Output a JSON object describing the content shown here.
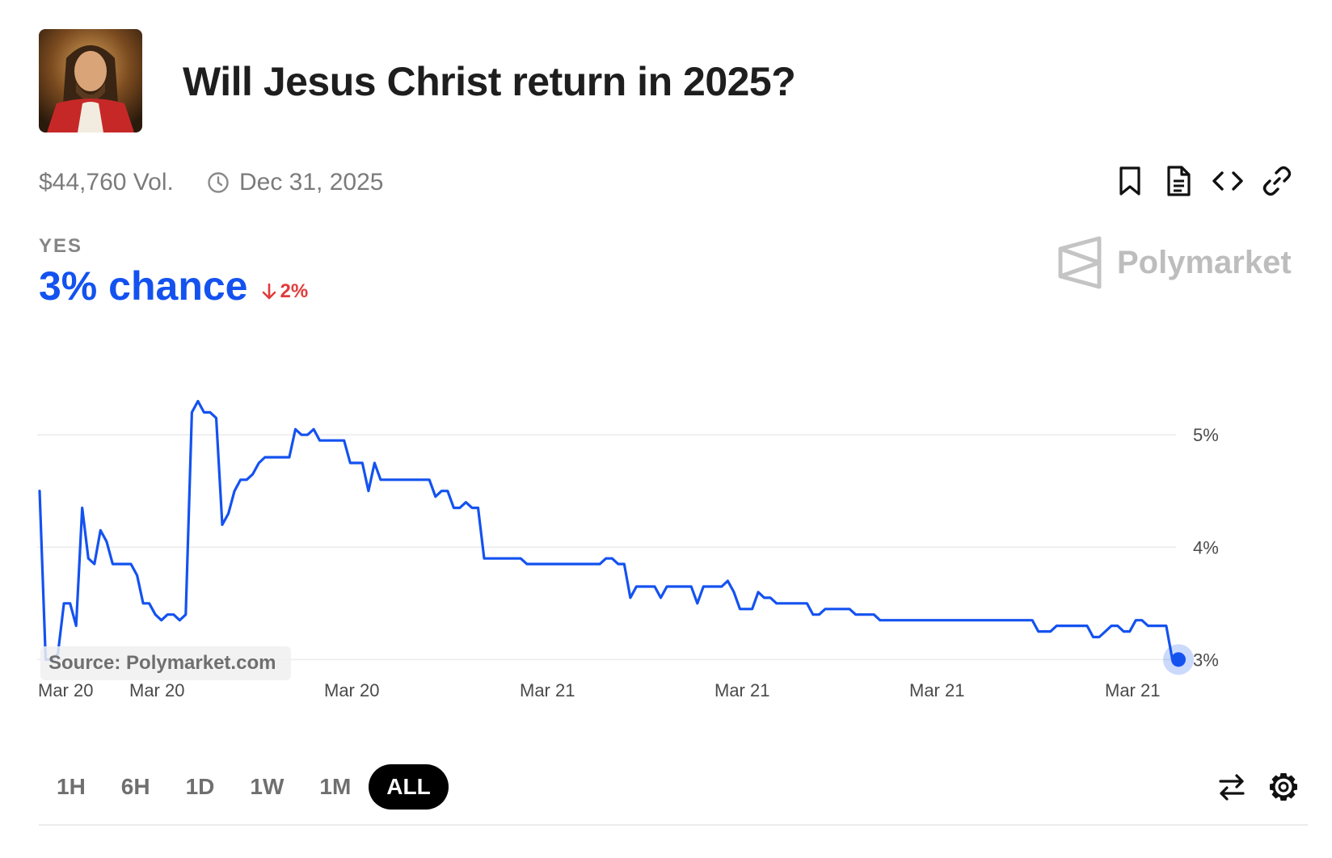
{
  "market": {
    "title": "Will Jesus Christ return in 2025?",
    "volume": "$44,760 Vol.",
    "end_date": "Dec 31, 2025",
    "outcome_label": "YES",
    "chance_text": "3% chance",
    "delta_text": "2%",
    "delta_direction": "down"
  },
  "brand": {
    "name": "Polymarket"
  },
  "actions": {
    "bookmark_icon": "bookmark-icon",
    "document_icon": "document-icon",
    "embed_icon": "code-icon",
    "link_icon": "link-icon"
  },
  "source_label": "Source: Polymarket.com",
  "time_ranges": [
    "1H",
    "6H",
    "1D",
    "1W",
    "1M",
    "ALL"
  ],
  "active_range": "ALL",
  "colors": {
    "accent": "#1452f0",
    "negative": "#e23b3b",
    "grid": "#ebebeb",
    "brand_gray": "#bdbdbd",
    "active_pill": "#000000"
  },
  "chart_data": {
    "type": "line",
    "title": "",
    "xlabel": "",
    "ylabel": "",
    "ylim": [
      2.83,
      5.85
    ],
    "y_ticks": [
      {
        "value": 5,
        "label": "5%"
      },
      {
        "value": 4,
        "label": "4%"
      },
      {
        "value": 3,
        "label": "3%"
      }
    ],
    "x_tick_labels": [
      "Mar 20",
      "Mar 20",
      "Mar 20",
      "Mar 21",
      "Mar 21",
      "Mar 21",
      "Mar 21"
    ],
    "grid": true,
    "last_value": 3.0,
    "series": [
      {
        "values": [
          4.5,
          3.0,
          3.0,
          3.05,
          3.5,
          3.5,
          3.3,
          4.35,
          3.9,
          3.85,
          4.15,
          4.05,
          3.85,
          3.85,
          3.85,
          3.85,
          3.75,
          3.5,
          3.5,
          3.4,
          3.35,
          3.4,
          3.4,
          3.35,
          3.4,
          5.2,
          5.3,
          5.2,
          5.2,
          5.15,
          4.2,
          4.3,
          4.5,
          4.6,
          4.6,
          4.65,
          4.75,
          4.8,
          4.8,
          4.8,
          4.8,
          4.8,
          5.05,
          5.0,
          5.0,
          5.05,
          4.95,
          4.95,
          4.95,
          4.95,
          4.95,
          4.75,
          4.75,
          4.75,
          4.5,
          4.75,
          4.6,
          4.6,
          4.6,
          4.6,
          4.6,
          4.6,
          4.6,
          4.6,
          4.6,
          4.45,
          4.5,
          4.5,
          4.35,
          4.35,
          4.4,
          4.35,
          4.35,
          3.9,
          3.9,
          3.9,
          3.9,
          3.9,
          3.9,
          3.9,
          3.85,
          3.85,
          3.85,
          3.85,
          3.85,
          3.85,
          3.85,
          3.85,
          3.85,
          3.85,
          3.85,
          3.85,
          3.85,
          3.9,
          3.9,
          3.85,
          3.85,
          3.55,
          3.65,
          3.65,
          3.65,
          3.65,
          3.55,
          3.65,
          3.65,
          3.65,
          3.65,
          3.65,
          3.5,
          3.65,
          3.65,
          3.65,
          3.65,
          3.7,
          3.6,
          3.45,
          3.45,
          3.45,
          3.6,
          3.55,
          3.55,
          3.5,
          3.5,
          3.5,
          3.5,
          3.5,
          3.5,
          3.4,
          3.4,
          3.45,
          3.45,
          3.45,
          3.45,
          3.45,
          3.4,
          3.4,
          3.4,
          3.4,
          3.35,
          3.35,
          3.35,
          3.35,
          3.35,
          3.35,
          3.35,
          3.35,
          3.35,
          3.35,
          3.35,
          3.35,
          3.35,
          3.35,
          3.35,
          3.35,
          3.35,
          3.35,
          3.35,
          3.35,
          3.35,
          3.35,
          3.35,
          3.35,
          3.35,
          3.35,
          3.25,
          3.25,
          3.25,
          3.3,
          3.3,
          3.3,
          3.3,
          3.3,
          3.3,
          3.2,
          3.2,
          3.25,
          3.3,
          3.3,
          3.25,
          3.25,
          3.35,
          3.35,
          3.3,
          3.3,
          3.3,
          3.3,
          3.0,
          3.0
        ]
      }
    ]
  }
}
